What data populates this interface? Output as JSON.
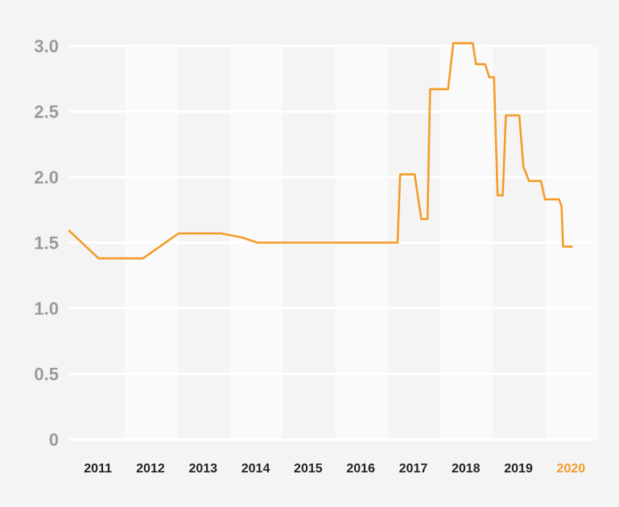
{
  "chart_data": {
    "type": "line",
    "title": "",
    "xlabel": "",
    "ylabel": "",
    "ylim": [
      0,
      3.0
    ],
    "xlim": [
      2010.55,
      2020.7
    ],
    "yticks": [
      0,
      0.5,
      1.0,
      1.5,
      2.0,
      2.5,
      3.0
    ],
    "ytick_labels": [
      "0",
      "0.5",
      "1.0",
      "1.5",
      "2.0",
      "2.5",
      "3.0"
    ],
    "categories": [
      "2011",
      "2012",
      "2013",
      "2014",
      "2015",
      "2016",
      "2017",
      "2018",
      "2019",
      "2020"
    ],
    "highlight_category": "2020",
    "grid": true,
    "series": [
      {
        "color": "#f39c2a",
        "points": [
          [
            2010.55,
            1.59
          ],
          [
            2011.12,
            1.38
          ],
          [
            2011.4,
            1.38
          ],
          [
            2011.98,
            1.38
          ],
          [
            2012.67,
            1.57
          ],
          [
            2013.0,
            1.57
          ],
          [
            2013.5,
            1.57
          ],
          [
            2013.9,
            1.54
          ],
          [
            2014.2,
            1.5
          ],
          [
            2015.0,
            1.5
          ],
          [
            2016.0,
            1.5
          ],
          [
            2016.92,
            1.5
          ],
          [
            2016.97,
            2.02
          ],
          [
            2017.25,
            2.02
          ],
          [
            2017.38,
            1.68
          ],
          [
            2017.5,
            1.68
          ],
          [
            2017.55,
            2.67
          ],
          [
            2017.9,
            2.67
          ],
          [
            2018.0,
            3.02
          ],
          [
            2018.38,
            3.02
          ],
          [
            2018.44,
            2.86
          ],
          [
            2018.62,
            2.86
          ],
          [
            2018.7,
            2.76
          ],
          [
            2018.79,
            2.76
          ],
          [
            2018.86,
            1.86
          ],
          [
            2018.96,
            1.86
          ],
          [
            2019.02,
            2.47
          ],
          [
            2019.28,
            2.47
          ],
          [
            2019.36,
            2.08
          ],
          [
            2019.47,
            1.97
          ],
          [
            2019.7,
            1.97
          ],
          [
            2019.78,
            1.83
          ],
          [
            2020.05,
            1.83
          ],
          [
            2020.1,
            1.78
          ],
          [
            2020.13,
            1.47
          ],
          [
            2020.3,
            1.47
          ]
        ]
      }
    ],
    "colors": {
      "background": "#f4f4f4",
      "band": "#fafafa",
      "grid": "#ffffff",
      "line": "#f39c2a",
      "ytick": "#9a9a9a",
      "xtick": "#222222",
      "xtick_highlight": "#f39c2a"
    }
  }
}
